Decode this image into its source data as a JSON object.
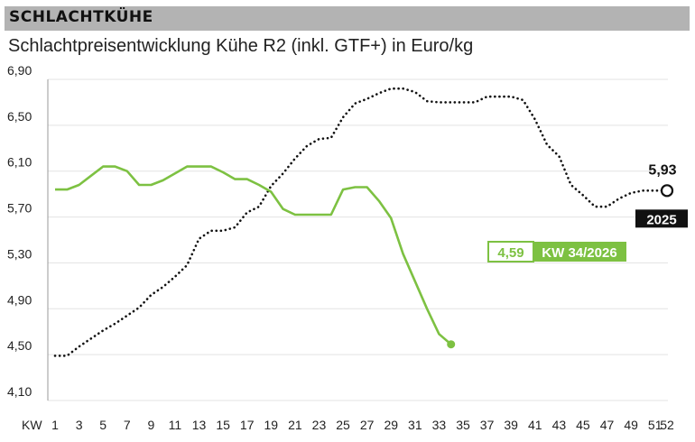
{
  "header": {
    "title": "SCHLACHTKÜHE"
  },
  "subtitle": "Schlachtpreisentwicklung Kühe R2 (inkl. GTF+) in Euro/kg",
  "colors": {
    "series_2026": "#7dc142",
    "series_2025": "#111111",
    "grid": "#e3e3e3",
    "axis": "#999999"
  },
  "chart_data": {
    "type": "line",
    "title": "SCHLACHTKÜHE",
    "subtitle": "Schlachtpreisentwicklung Kühe R2 (inkl. GTF+) in Euro/kg",
    "xlabel": "KW",
    "ylabel": "",
    "x_tick_labels": [
      "1",
      "3",
      "5",
      "7",
      "9",
      "11",
      "13",
      "15",
      "17",
      "19",
      "21",
      "23",
      "25",
      "27",
      "29",
      "31",
      "33",
      "35",
      "37",
      "39",
      "41",
      "43",
      "45",
      "47",
      "49",
      "51",
      "52"
    ],
    "y_ticks": [
      4.1,
      4.5,
      4.9,
      5.3,
      5.7,
      6.1,
      6.5,
      6.9
    ],
    "y_tick_labels": [
      "4,10",
      "4,50",
      "4,90",
      "5,30",
      "5,70",
      "6,10",
      "6,50",
      "6,90"
    ],
    "xlim": [
      1,
      52
    ],
    "ylim": [
      4.1,
      6.9
    ],
    "grid": true,
    "series": [
      {
        "name": "2025",
        "style": "dotted",
        "x": [
          1,
          2,
          3,
          4,
          5,
          6,
          7,
          8,
          9,
          10,
          11,
          12,
          13,
          14,
          15,
          16,
          17,
          18,
          19,
          20,
          21,
          22,
          23,
          24,
          25,
          26,
          27,
          28,
          29,
          30,
          31,
          32,
          33,
          34,
          35,
          36,
          37,
          38,
          39,
          40,
          41,
          42,
          43,
          44,
          45,
          46,
          47,
          48,
          49,
          50,
          51,
          52
        ],
        "values": [
          4.49,
          4.49,
          4.57,
          4.64,
          4.71,
          4.77,
          4.84,
          4.91,
          5.02,
          5.09,
          5.18,
          5.28,
          5.51,
          5.58,
          5.58,
          5.61,
          5.74,
          5.79,
          5.97,
          6.08,
          6.21,
          6.32,
          6.38,
          6.39,
          6.57,
          6.69,
          6.73,
          6.78,
          6.82,
          6.82,
          6.79,
          6.71,
          6.7,
          6.7,
          6.7,
          6.7,
          6.75,
          6.75,
          6.75,
          6.72,
          6.55,
          6.33,
          6.23,
          5.98,
          5.89,
          5.79,
          5.79,
          5.86,
          5.91,
          5.93,
          5.93,
          5.93
        ],
        "end_label": "5,93",
        "badge": "2025"
      },
      {
        "name": "2026",
        "style": "solid",
        "x": [
          1,
          2,
          3,
          4,
          5,
          6,
          7,
          8,
          9,
          10,
          11,
          12,
          13,
          14,
          15,
          16,
          17,
          18,
          19,
          20,
          21,
          22,
          23,
          24,
          25,
          26,
          27,
          28,
          29,
          30,
          31,
          32,
          33,
          34
        ],
        "values": [
          5.94,
          5.94,
          5.98,
          6.06,
          6.14,
          6.14,
          6.1,
          5.98,
          5.98,
          6.02,
          6.08,
          6.14,
          6.14,
          6.14,
          6.09,
          6.03,
          6.03,
          5.98,
          5.92,
          5.77,
          5.72,
          5.72,
          5.72,
          5.72,
          5.94,
          5.96,
          5.96,
          5.84,
          5.69,
          5.38,
          5.14,
          4.9,
          4.68,
          4.59
        ]
      }
    ],
    "annotation": {
      "value_label": "4,59",
      "week_label": "KW 34/2026"
    }
  }
}
